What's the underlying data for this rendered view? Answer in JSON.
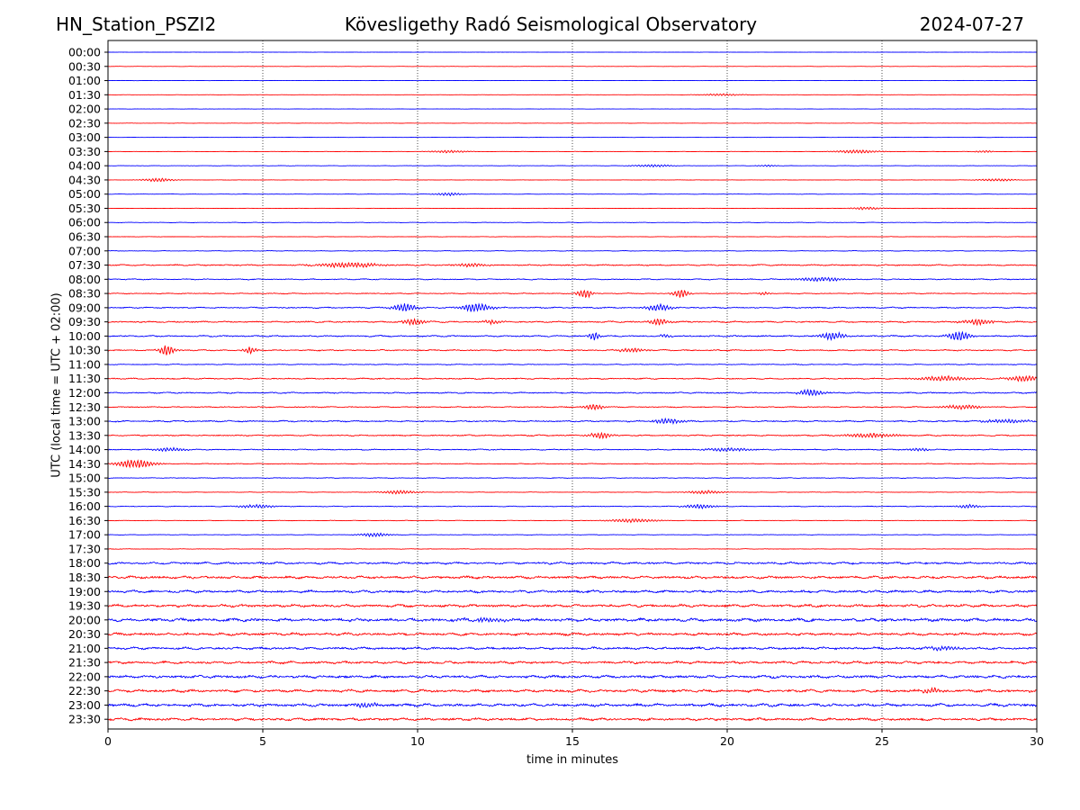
{
  "header": {
    "station": "HN_Station_PSZI2",
    "observatory": "Kövesligethy Radó Seismological Observatory",
    "date": "2024-07-27"
  },
  "chart_data": {
    "type": "line",
    "title": "Kövesligethy Radó Seismological Observatory",
    "xlabel": "time in minutes",
    "ylabel": "UTC (local time = UTC + 02:00)",
    "xlim": [
      0,
      30
    ],
    "xticks": [
      "0",
      "5",
      "10",
      "15",
      "20",
      "25",
      "30"
    ],
    "vertical_gridlines_at": [
      5,
      10,
      15,
      20,
      25
    ],
    "grid": "vertical dotted",
    "colors": {
      "even": "#0000ff",
      "odd": "#ff0000",
      "grid": "#000000"
    },
    "rows": [
      {
        "label": "00:00",
        "noise": 0.15
      },
      {
        "label": "00:30",
        "noise": 0.15
      },
      {
        "label": "01:00",
        "noise": 0.15
      },
      {
        "label": "01:30",
        "noise": 0.15,
        "events": [
          [
            19.8,
            1.2,
            0.6
          ]
        ]
      },
      {
        "label": "02:00",
        "noise": 0.15
      },
      {
        "label": "02:30",
        "noise": 0.15
      },
      {
        "label": "03:00",
        "noise": 0.15
      },
      {
        "label": "03:30",
        "noise": 0.2,
        "events": [
          [
            11.0,
            1.5,
            0.6
          ],
          [
            24.2,
            2.0,
            0.7
          ],
          [
            28.3,
            1.2,
            0.3
          ]
        ]
      },
      {
        "label": "04:00",
        "noise": 0.2,
        "events": [
          [
            17.6,
            1.5,
            0.6
          ],
          [
            21.3,
            1.0,
            0.3
          ]
        ]
      },
      {
        "label": "04:30",
        "noise": 0.2,
        "events": [
          [
            1.6,
            2.0,
            0.5
          ],
          [
            28.7,
            1.5,
            0.6
          ]
        ]
      },
      {
        "label": "05:00",
        "noise": 0.2,
        "events": [
          [
            11.0,
            1.8,
            0.4
          ]
        ]
      },
      {
        "label": "05:30",
        "noise": 0.2,
        "events": [
          [
            24.5,
            1.5,
            0.5
          ]
        ]
      },
      {
        "label": "06:00",
        "noise": 0.25
      },
      {
        "label": "06:30",
        "noise": 0.25
      },
      {
        "label": "07:00",
        "noise": 0.3
      },
      {
        "label": "07:30",
        "noise": 0.7,
        "events": [
          [
            7.8,
            3.0,
            1.0
          ],
          [
            11.7,
            2.0,
            0.5
          ]
        ]
      },
      {
        "label": "08:00",
        "noise": 0.6,
        "events": [
          [
            23.0,
            2.5,
            0.7
          ]
        ]
      },
      {
        "label": "08:30",
        "noise": 0.5,
        "events": [
          [
            15.4,
            5.0,
            0.25
          ],
          [
            18.5,
            5.5,
            0.25
          ],
          [
            21.2,
            2.0,
            0.2
          ]
        ]
      },
      {
        "label": "09:00",
        "noise": 0.7,
        "events": [
          [
            9.6,
            4.5,
            0.4
          ],
          [
            11.9,
            5.0,
            0.5
          ],
          [
            17.8,
            4.0,
            0.4
          ]
        ]
      },
      {
        "label": "09:30",
        "noise": 0.8,
        "events": [
          [
            9.9,
            3.5,
            0.4
          ],
          [
            12.4,
            2.5,
            0.3
          ],
          [
            17.8,
            4.0,
            0.3
          ],
          [
            28.1,
            3.0,
            0.5
          ]
        ]
      },
      {
        "label": "10:00",
        "noise": 0.8,
        "events": [
          [
            15.7,
            4.5,
            0.2
          ],
          [
            18.0,
            2.0,
            0.2
          ],
          [
            23.4,
            4.5,
            0.4
          ],
          [
            27.5,
            6.0,
            0.35
          ]
        ]
      },
      {
        "label": "10:30",
        "noise": 0.7,
        "events": [
          [
            1.9,
            6.0,
            0.25
          ],
          [
            4.6,
            4.0,
            0.2
          ],
          [
            16.9,
            2.5,
            0.4
          ]
        ]
      },
      {
        "label": "11:00",
        "noise": 0.5
      },
      {
        "label": "11:30",
        "noise": 0.7,
        "events": [
          [
            27.0,
            3.0,
            0.8
          ],
          [
            29.6,
            3.0,
            0.6
          ]
        ]
      },
      {
        "label": "12:00",
        "noise": 0.7,
        "events": [
          [
            22.7,
            4.0,
            0.4
          ]
        ]
      },
      {
        "label": "12:30",
        "noise": 0.6,
        "events": [
          [
            15.7,
            3.5,
            0.3
          ],
          [
            27.6,
            2.5,
            0.6
          ]
        ]
      },
      {
        "label": "13:00",
        "noise": 0.8,
        "events": [
          [
            18.1,
            3.0,
            0.5
          ],
          [
            29.0,
            2.0,
            0.8
          ]
        ]
      },
      {
        "label": "13:30",
        "noise": 0.7,
        "events": [
          [
            15.9,
            3.5,
            0.4
          ],
          [
            24.6,
            2.5,
            0.8
          ]
        ]
      },
      {
        "label": "14:00",
        "noise": 0.6,
        "events": [
          [
            2.0,
            2.0,
            0.5
          ],
          [
            20.0,
            2.0,
            0.8
          ],
          [
            26.2,
            2.0,
            0.3
          ]
        ]
      },
      {
        "label": "14:30",
        "noise": 0.4,
        "events": [
          [
            0.9,
            5.0,
            0.6
          ]
        ]
      },
      {
        "label": "15:00",
        "noise": 0.4
      },
      {
        "label": "15:30",
        "noise": 0.3,
        "events": [
          [
            9.4,
            2.0,
            0.6
          ],
          [
            19.3,
            2.0,
            0.6
          ]
        ]
      },
      {
        "label": "16:00",
        "noise": 0.4,
        "events": [
          [
            4.8,
            2.0,
            0.6
          ],
          [
            19.1,
            2.5,
            0.5
          ],
          [
            27.8,
            2.0,
            0.4
          ]
        ]
      },
      {
        "label": "16:30",
        "noise": 0.3,
        "events": [
          [
            17.0,
            2.0,
            0.8
          ]
        ]
      },
      {
        "label": "17:00",
        "noise": 0.3,
        "events": [
          [
            8.6,
            2.0,
            0.5
          ]
        ]
      },
      {
        "label": "17:30",
        "noise": 0.3
      },
      {
        "label": "18:00",
        "noise": 1.2
      },
      {
        "label": "18:30",
        "noise": 1.4
      },
      {
        "label": "19:00",
        "noise": 1.4
      },
      {
        "label": "19:30",
        "noise": 1.5
      },
      {
        "label": "20:00",
        "noise": 1.7,
        "events": [
          [
            12.1,
            2.0,
            0.8
          ]
        ]
      },
      {
        "label": "20:30",
        "noise": 1.5
      },
      {
        "label": "21:00",
        "noise": 1.3,
        "events": [
          [
            27.0,
            2.0,
            0.6
          ]
        ]
      },
      {
        "label": "21:30",
        "noise": 1.4
      },
      {
        "label": "22:00",
        "noise": 1.5
      },
      {
        "label": "22:30",
        "noise": 1.5,
        "events": [
          [
            26.6,
            3.0,
            0.3
          ]
        ]
      },
      {
        "label": "23:00",
        "noise": 1.6,
        "events": [
          [
            8.3,
            2.5,
            0.4
          ]
        ]
      },
      {
        "label": "23:30",
        "noise": 1.4
      }
    ]
  }
}
